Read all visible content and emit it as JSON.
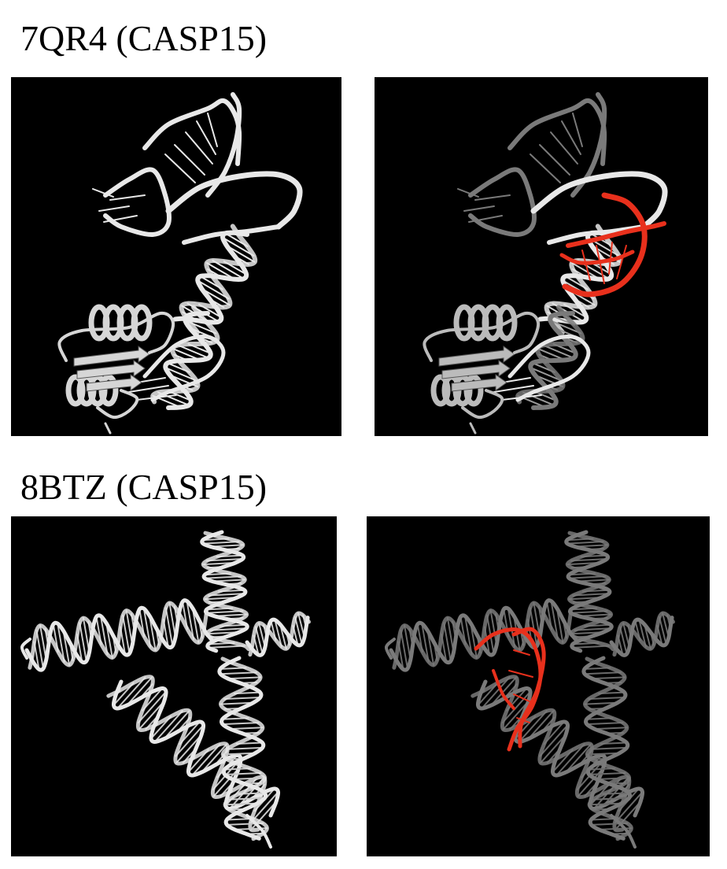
{
  "figure": {
    "rows": [
      {
        "title": "7QR4 (CASP15)",
        "panels": [
          {
            "name": "structure-image",
            "highlight": false
          },
          {
            "name": "structure-image-highlighted",
            "highlight": true
          }
        ]
      },
      {
        "title": "8BTZ (CASP15)",
        "panels": [
          {
            "name": "structure-image",
            "highlight": false
          },
          {
            "name": "structure-image-highlighted",
            "highlight": true
          }
        ]
      }
    ]
  },
  "colors": {
    "background": "#000000",
    "backbone_light": "#e8e8e8",
    "backbone_dark": "#7a7a7a",
    "highlight": "#e8301c",
    "page": "#ffffff"
  }
}
